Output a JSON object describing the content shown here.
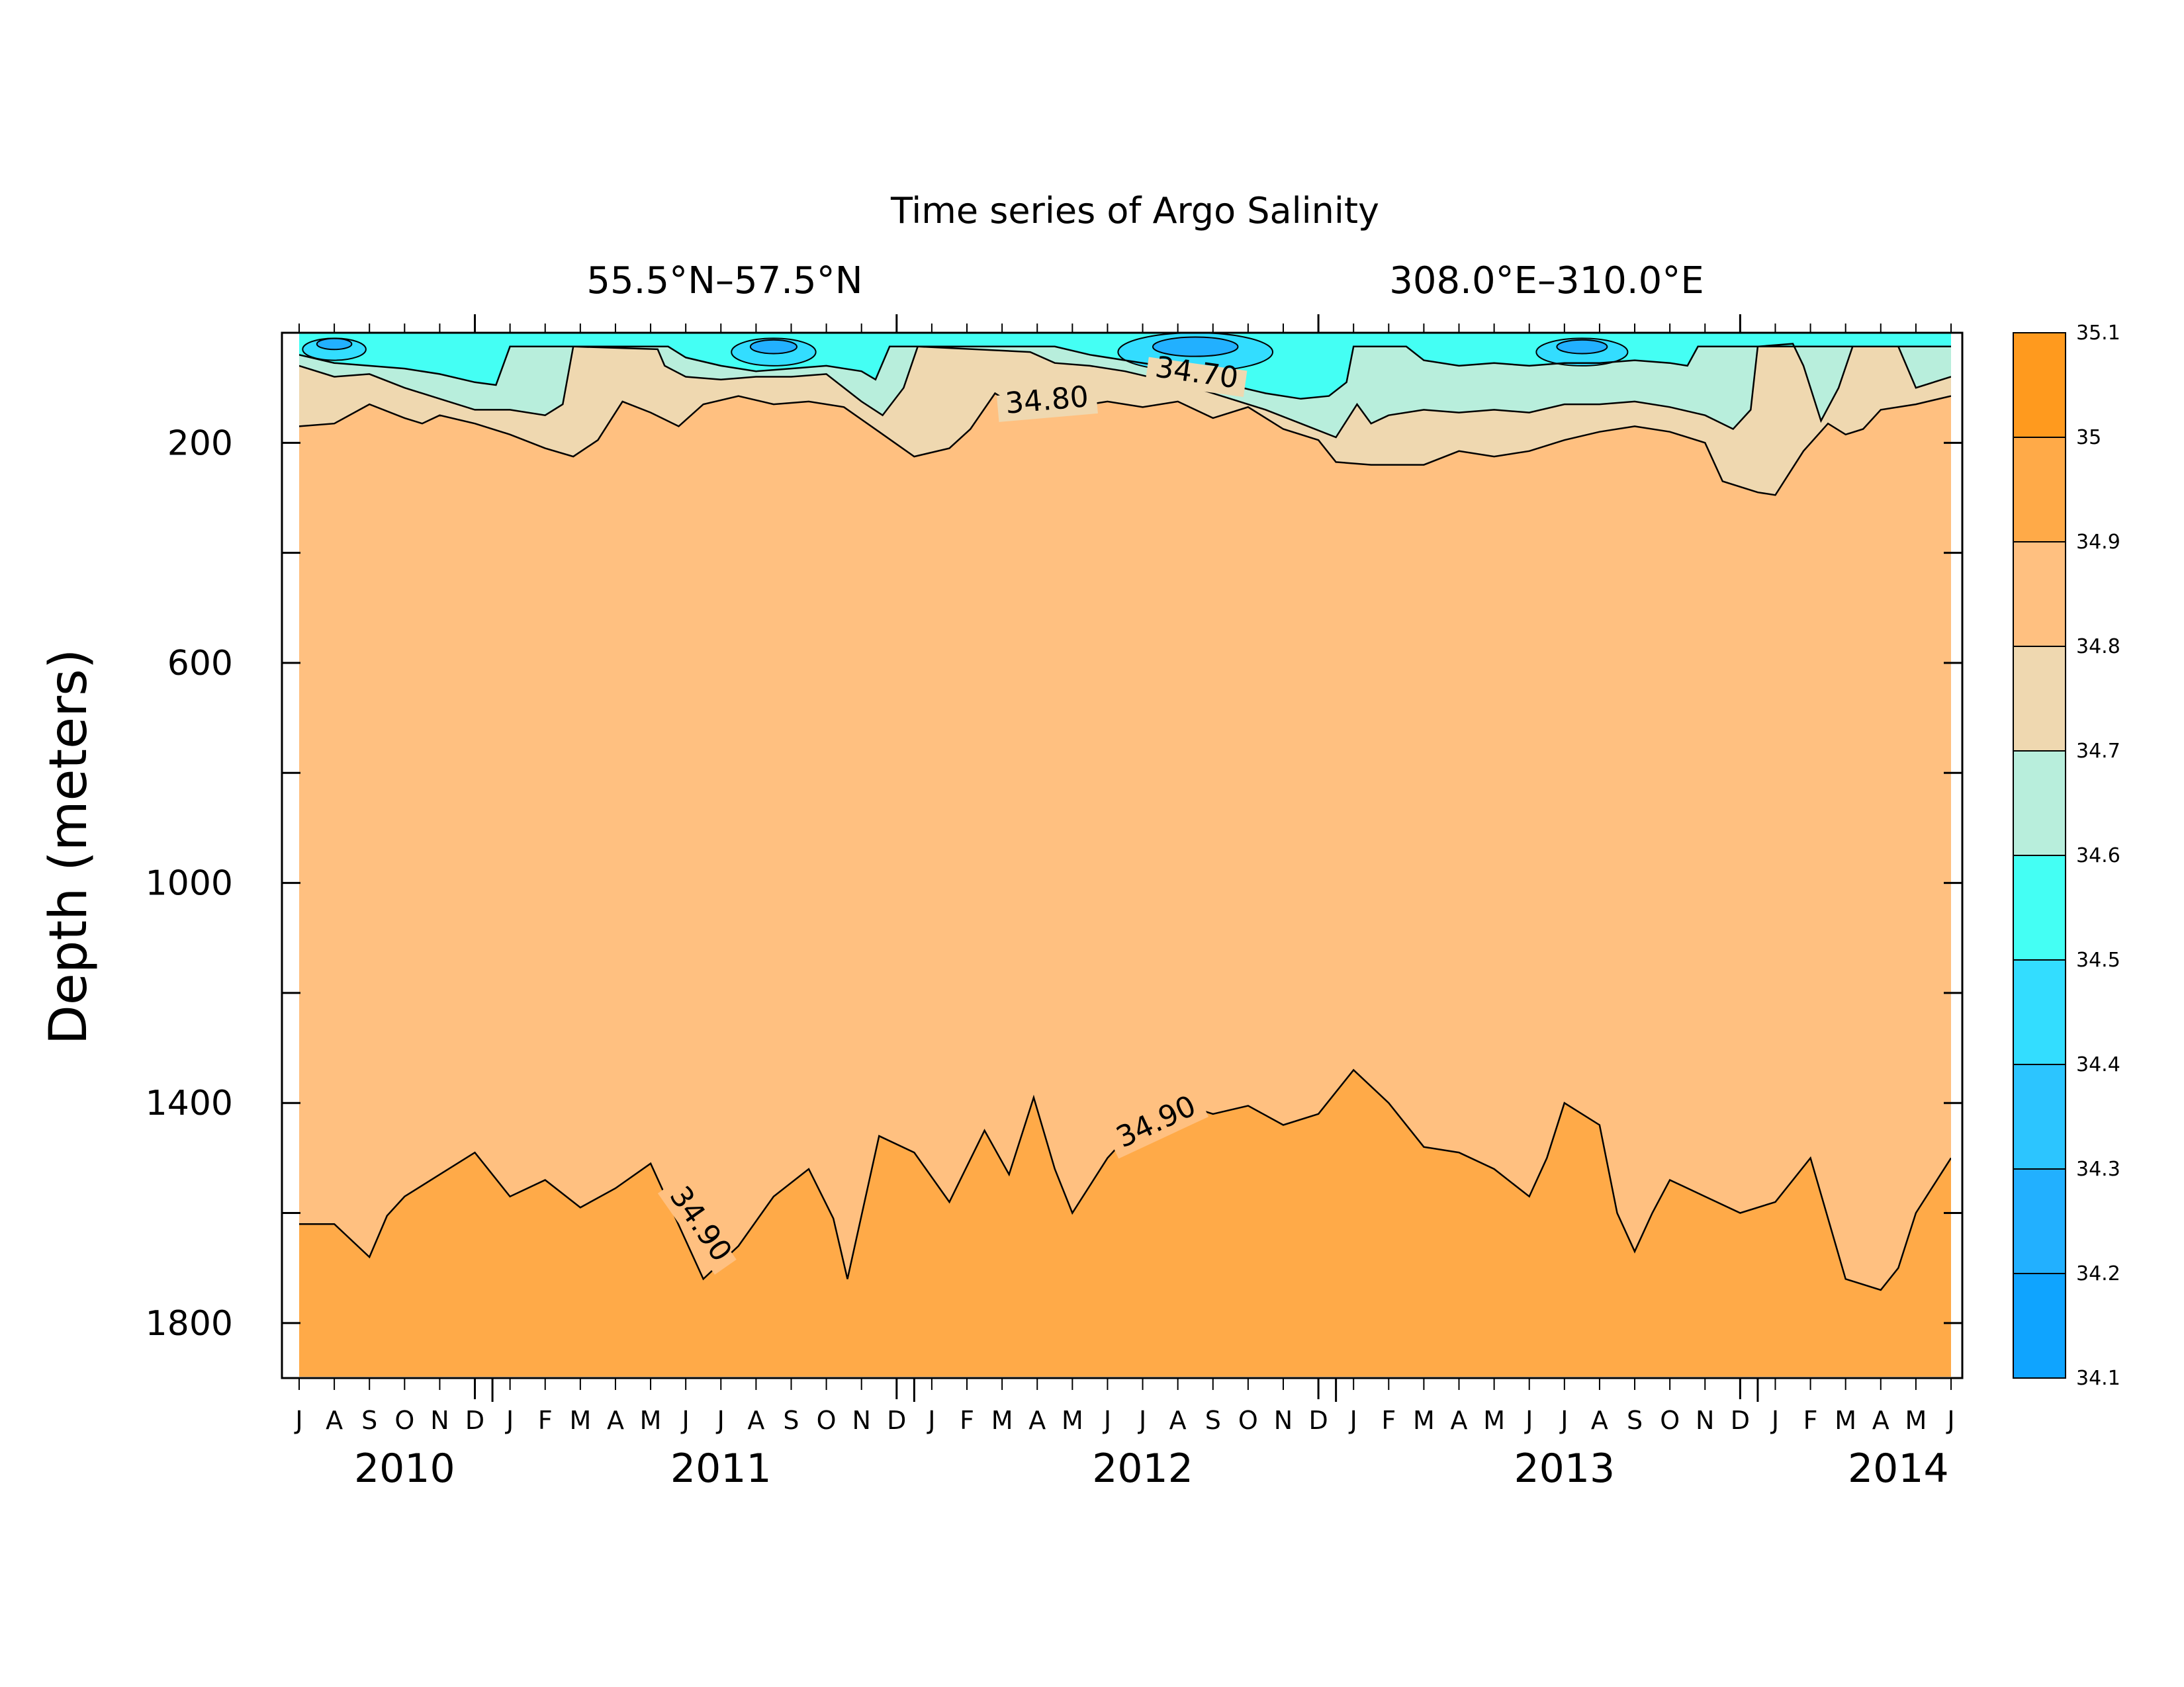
{
  "chart_data": {
    "type": "contour",
    "title": "Time series of Argo Salinity",
    "lat_range": "55.5°N–57.5°N",
    "lon_range": "308.0°E–310.0°E",
    "ylabel": "Depth (meters)",
    "y_ticks": [
      "200",
      "600",
      "1000",
      "1400",
      "1800"
    ],
    "y_tick_values": [
      200,
      600,
      1000,
      1400,
      1800
    ],
    "ylim": [
      0,
      1900
    ],
    "y_reversed": true,
    "x_range": [
      "2010-07",
      "2014-06"
    ],
    "month_labels": [
      "J",
      "A",
      "S",
      "O",
      "N",
      "D",
      "J",
      "F",
      "M",
      "A",
      "M",
      "J",
      "J",
      "A",
      "S",
      "O",
      "N",
      "D",
      "J",
      "F",
      "M",
      "A",
      "M",
      "J",
      "J",
      "A",
      "S",
      "O",
      "N",
      "D",
      "J",
      "F",
      "M",
      "A",
      "M",
      "J",
      "J",
      "A",
      "S",
      "O",
      "N",
      "D",
      "J",
      "F",
      "M",
      "A",
      "M",
      "J"
    ],
    "year_labels": [
      {
        "label": "2010",
        "month_index": 3
      },
      {
        "label": "2011",
        "month_index": 12
      },
      {
        "label": "2012",
        "month_index": 24
      },
      {
        "label": "2013",
        "month_index": 36
      },
      {
        "label": "2014",
        "month_index": 45.5
      }
    ],
    "colorbar": {
      "levels": [
        "35.1",
        "35",
        "34.9",
        "34.8",
        "34.7",
        "34.6",
        "34.5",
        "34.4",
        "34.3",
        "34.2",
        "34.1"
      ],
      "colors": [
        "#ff9a1e",
        "#ffaa48",
        "#ffc080",
        "#efd8b0",
        "#b8eedc",
        "#44fff4",
        "#33ddff",
        "#2cc5ff",
        "#22b0ff",
        "#0fa4ff"
      ]
    },
    "contour_labels": [
      {
        "text": "34.70",
        "month": 25.5,
        "depth": 90
      },
      {
        "text": "34.80",
        "month": 21.3,
        "depth": 140
      },
      {
        "text": "34.90",
        "month": 24.5,
        "depth": 1450
      },
      {
        "text": "34.90",
        "month": 11.2,
        "depth": 1630
      }
    ],
    "isoline_34_90": [
      [
        0,
        1620
      ],
      [
        1,
        1620
      ],
      [
        2,
        1680
      ],
      [
        2.5,
        1605
      ],
      [
        3,
        1570
      ],
      [
        4,
        1530
      ],
      [
        5,
        1490
      ],
      [
        6,
        1570
      ],
      [
        7,
        1540
      ],
      [
        8,
        1590
      ],
      [
        9,
        1555
      ],
      [
        10,
        1510
      ],
      [
        11.5,
        1720
      ],
      [
        12.5,
        1660
      ],
      [
        13.5,
        1570
      ],
      [
        14.5,
        1520
      ],
      [
        15.2,
        1610
      ],
      [
        15.6,
        1720
      ],
      [
        16.5,
        1460
      ],
      [
        17.5,
        1490
      ],
      [
        18.5,
        1580
      ],
      [
        19.5,
        1450
      ],
      [
        20.2,
        1530
      ],
      [
        20.9,
        1390
      ],
      [
        21.5,
        1520
      ],
      [
        22,
        1600
      ],
      [
        23,
        1500
      ],
      [
        24,
        1430
      ],
      [
        25,
        1400
      ],
      [
        26,
        1420
      ],
      [
        27,
        1405
      ],
      [
        28,
        1440
      ],
      [
        29,
        1420
      ],
      [
        30,
        1340
      ],
      [
        31,
        1400
      ],
      [
        32,
        1480
      ],
      [
        33,
        1490
      ],
      [
        34,
        1520
      ],
      [
        35,
        1570
      ],
      [
        35.5,
        1500
      ],
      [
        36,
        1400
      ],
      [
        37,
        1440
      ],
      [
        37.5,
        1600
      ],
      [
        38,
        1670
      ],
      [
        38.5,
        1600
      ],
      [
        39,
        1540
      ],
      [
        40,
        1570
      ],
      [
        41,
        1600
      ],
      [
        42,
        1580
      ],
      [
        43,
        1500
      ],
      [
        44,
        1720
      ],
      [
        45,
        1740
      ],
      [
        45.5,
        1700
      ],
      [
        46,
        1600
      ],
      [
        47,
        1500
      ]
    ],
    "isoline_34_80": [
      [
        0,
        170
      ],
      [
        1,
        165
      ],
      [
        2,
        130
      ],
      [
        3,
        155
      ],
      [
        3.5,
        165
      ],
      [
        4,
        150
      ],
      [
        5,
        165
      ],
      [
        6,
        185
      ],
      [
        7,
        210
      ],
      [
        7.8,
        225
      ],
      [
        8.5,
        195
      ],
      [
        9.2,
        125
      ],
      [
        10,
        145
      ],
      [
        10.8,
        170
      ],
      [
        11.5,
        130
      ],
      [
        12.5,
        115
      ],
      [
        13.5,
        130
      ],
      [
        14.5,
        125
      ],
      [
        15.5,
        135
      ],
      [
        16.5,
        180
      ],
      [
        17.5,
        225
      ],
      [
        18.5,
        210
      ],
      [
        19.1,
        175
      ],
      [
        19.8,
        110
      ],
      [
        20.3,
        130
      ],
      [
        21,
        145
      ],
      [
        22,
        135
      ],
      [
        23,
        125
      ],
      [
        24,
        135
      ],
      [
        25,
        125
      ],
      [
        26,
        155
      ],
      [
        27,
        135
      ],
      [
        28,
        175
      ],
      [
        29,
        195
      ],
      [
        29.5,
        235
      ],
      [
        30.5,
        240
      ],
      [
        31,
        240
      ],
      [
        32,
        240
      ],
      [
        33,
        215
      ],
      [
        34,
        225
      ],
      [
        35,
        215
      ],
      [
        36,
        195
      ],
      [
        37,
        180
      ],
      [
        38,
        170
      ],
      [
        39,
        180
      ],
      [
        40,
        200
      ],
      [
        40.5,
        270
      ],
      [
        41.5,
        290
      ],
      [
        42,
        295
      ],
      [
        42.8,
        215
      ],
      [
        43.5,
        165
      ],
      [
        44,
        185
      ],
      [
        44.5,
        175
      ],
      [
        45,
        140
      ],
      [
        46,
        130
      ],
      [
        47,
        115
      ]
    ],
    "isoline_34_70": [
      [
        0,
        60
      ],
      [
        1,
        80
      ],
      [
        2,
        75
      ],
      [
        3,
        100
      ],
      [
        4,
        120
      ],
      [
        5,
        140
      ],
      [
        6,
        140
      ],
      [
        7,
        150
      ],
      [
        7.5,
        130
      ],
      [
        7.8,
        25
      ],
      [
        10.2,
        30
      ],
      [
        10.4,
        60
      ],
      [
        11,
        80
      ],
      [
        12,
        85
      ],
      [
        13,
        80
      ],
      [
        14,
        80
      ],
      [
        15,
        75
      ],
      [
        16,
        125
      ],
      [
        16.6,
        150
      ],
      [
        17.2,
        100
      ],
      [
        17.6,
        25
      ],
      [
        20.8,
        35
      ],
      [
        21.5,
        55
      ],
      [
        22.5,
        60
      ],
      [
        23.5,
        70
      ],
      [
        24.5,
        85
      ],
      [
        25.5,
        100
      ],
      [
        26.5,
        120
      ],
      [
        27.5,
        140
      ],
      [
        28.5,
        165
      ],
      [
        29.5,
        190
      ],
      [
        30.1,
        130
      ],
      [
        30.5,
        165
      ],
      [
        31,
        150
      ],
      [
        32,
        140
      ],
      [
        33,
        145
      ],
      [
        34,
        140
      ],
      [
        35,
        145
      ],
      [
        36,
        130
      ],
      [
        37,
        130
      ],
      [
        38,
        125
      ],
      [
        39,
        135
      ],
      [
        40,
        150
      ],
      [
        40.8,
        175
      ],
      [
        41.3,
        140
      ],
      [
        41.5,
        25
      ],
      [
        42.5,
        20
      ],
      [
        42.8,
        60
      ],
      [
        43.3,
        160
      ],
      [
        43.8,
        100
      ],
      [
        44.2,
        25
      ],
      [
        45.5,
        25
      ],
      [
        46,
        100
      ],
      [
        47,
        80
      ]
    ],
    "isoline_34_60": [
      [
        0,
        40
      ],
      [
        1,
        55
      ],
      [
        2,
        60
      ],
      [
        3,
        65
      ],
      [
        4,
        75
      ],
      [
        5,
        90
      ],
      [
        5.6,
        95
      ],
      [
        6,
        25
      ],
      [
        10.5,
        25
      ],
      [
        11,
        45
      ],
      [
        12,
        60
      ],
      [
        13,
        70
      ],
      [
        14,
        65
      ],
      [
        15,
        60
      ],
      [
        16,
        70
      ],
      [
        16.4,
        85
      ],
      [
        16.8,
        25
      ],
      [
        21.5,
        25
      ],
      [
        22.5,
        40
      ],
      [
        23.5,
        50
      ],
      [
        24.5,
        60
      ],
      [
        25.5,
        80
      ],
      [
        26.5,
        95
      ],
      [
        27.5,
        110
      ],
      [
        28.5,
        120
      ],
      [
        29.3,
        115
      ],
      [
        29.8,
        90
      ],
      [
        30,
        25
      ],
      [
        31.5,
        25
      ],
      [
        32,
        50
      ],
      [
        33,
        60
      ],
      [
        34,
        55
      ],
      [
        35,
        60
      ],
      [
        36,
        55
      ],
      [
        37,
        55
      ],
      [
        38,
        50
      ],
      [
        39,
        55
      ],
      [
        39.5,
        60
      ],
      [
        39.8,
        25
      ],
      [
        47,
        25
      ]
    ],
    "deep_blue_patches": [
      {
        "month": 1,
        "depth": 30,
        "rx": 0.9,
        "ry": 20
      },
      {
        "month": 13.5,
        "depth": 35,
        "rx": 1.2,
        "ry": 25
      },
      {
        "month": 25.5,
        "depth": 35,
        "rx": 2.2,
        "ry": 35
      },
      {
        "month": 36.5,
        "depth": 35,
        "rx": 1.3,
        "ry": 25
      }
    ]
  }
}
